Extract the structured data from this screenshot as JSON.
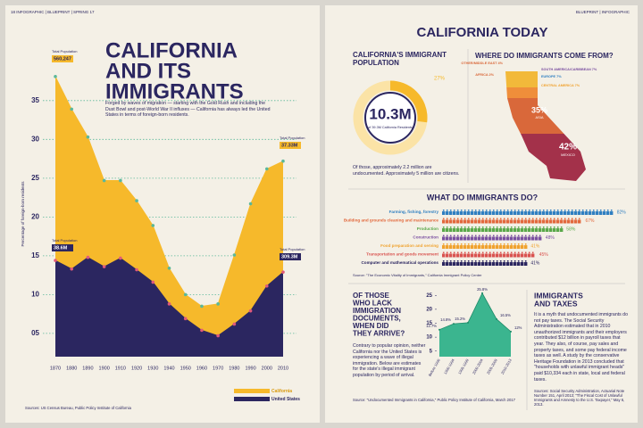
{
  "header_left": "18 INFOGRAPHIC | BLUEPRINT | SPRING 17",
  "header_right": "BLUEPRINT | INFOGRAPHIC",
  "title_lines": [
    "CALIFORNIA",
    "AND ITS",
    "IMMIGRANTS"
  ],
  "intro": "Forged by waves of migration — starting with the Gold Rush and including the Dust Bowl and post-World War II influxes — California has always led the United States in terms of foreign-born residents.",
  "right_title": "CALIFORNIA TODAY",
  "donut_note": "Of those, approximately 2.2 million are undocumented. Approximately 5 million are citizens.",
  "map": {
    "title": "WHERE DO IMMIGRANTS COME FROM?",
    "labels": [
      "OTHER/MIDDLE EAST 4%",
      "AFRICA 2%",
      "SOUTH AMERICA/CARIBBEAN 7%",
      "EUROPE 7%",
      "CENTRAL AMERICA 7%"
    ],
    "asia_pct": "35%",
    "asia": "ASIA",
    "mexico_pct": "42%",
    "mexico": "MEXICO"
  },
  "undoc_title_lines": [
    "OF THOSE",
    "WHO LACK",
    "IMMIGRATION",
    "DOCUMENTS,",
    "WHEN DID",
    "THEY ARRIVE?"
  ],
  "undoc_text": "Contrary to popular opinion, neither California nor the United States is experiencing a wave of illegal immigration. Below are estimates for the state's illegal immigrant population by period of arrival.",
  "undoc_source": "Source: \"Undocumented Immigrants in California,\" Public Policy Institute of California, March 2017",
  "taxes_title_lines": [
    "IMMIGRANTS",
    "AND TAXES"
  ],
  "taxes_text": "It is a myth that undocumented immigrants do not pay taxes. The Social Security Administration estimated that in 2010 unauthorized immigrants and their employers contributed $12 billion in payroll taxes that year. They also, of course, pay sales and property taxes, and some pay federal income taxes as well. A study by the conservative Heritage Foundation in 2013 concluded that \"households with unlawful immigrant heads\" paid $10,334 each in state, local and federal taxes.",
  "taxes_source": "Sources: Social Security Administration, Actuarial Note Number 151, April 2013; \"The Fiscal Cost of Unlawful Immigrants and Amnesty to the U.S. Taxpayer,\" May 6, 2013.",
  "chart_data": [
    {
      "type": "area",
      "y_label": "Percentage of foreign-born residents",
      "x": [
        1870,
        1880,
        1890,
        1900,
        1910,
        1920,
        1930,
        1940,
        1950,
        1960,
        1970,
        1980,
        1990,
        2000,
        2010
      ],
      "xlim": [
        1870,
        2010
      ],
      "ylim": [
        2,
        39
      ],
      "yticks": [
        {
          "value": 5,
          "label": "05"
        },
        10,
        15,
        20,
        25,
        30,
        35
      ],
      "grid": true,
      "series": [
        {
          "name": "California",
          "color": "#f6b92b",
          "marker_color": "#5bb89a",
          "values": [
            38.1,
            33.9,
            30.3,
            24.7,
            24.7,
            22.1,
            18.9,
            13.4,
            10.0,
            8.5,
            8.8,
            15.1,
            21.7,
            26.2,
            27.2
          ]
        },
        {
          "name": "United States",
          "color": "#2b2660",
          "marker_color": "#e05a7a",
          "values": [
            14.4,
            13.3,
            14.8,
            13.6,
            14.7,
            13.2,
            11.6,
            8.8,
            6.9,
            5.4,
            4.7,
            6.2,
            7.9,
            11.1,
            12.9
          ]
        }
      ],
      "annotations": [
        {
          "title": "Total Population",
          "label": "560,247"
        },
        {
          "title": "Total Population",
          "label": "38.6M"
        },
        {
          "title": "Total Population",
          "label": "37.33M"
        },
        {
          "title": "Total Population",
          "label": "309.3M"
        }
      ],
      "source": "Sources: US Census Bureau, Public Policy Institute of California"
    },
    {
      "type": "donut",
      "title_lines": [
        "CALIFORNIA'S IMMIGRANT",
        "POPULATION"
      ],
      "values": [
        27
      ],
      "value_labels": [
        "27%"
      ],
      "color": "#f6b92b",
      "track_color": "#fbe3a6",
      "center": "10.3M",
      "center_sub": "of 39.3M California Residents"
    },
    {
      "type": "pictogram",
      "title": "WHAT DO IMMIGRANTS DO?",
      "categories": [
        "Farming, fishing, forestry",
        "Building and grounds cleaning and maintenance",
        "Production",
        "Construction",
        "Food preparation and serving",
        "Transportation and goods movement",
        "Computer and mathematical operations"
      ],
      "values": [
        82,
        67,
        58,
        48,
        41,
        45,
        41
      ],
      "value_labels": [
        "82%",
        "67%",
        "58%",
        "48%",
        "41%",
        "45%",
        "41%"
      ],
      "colors": [
        "#2f7fc1",
        "#e2683c",
        "#5aa84a",
        "#7a4fa0",
        "#f0a22e",
        "#d9534f",
        "#2b2660"
      ],
      "source": "Source: \"The Economic Vitality of Immigrants,\" California Immigrant Policy Center"
    },
    {
      "type": "area",
      "categories": [
        "Before 1990",
        "1990-1994",
        "1995-1999",
        "2000-2004",
        "2005-2009",
        "2010-2013"
      ],
      "values": [
        12.7,
        14.8,
        15.2,
        25.8,
        16.5,
        12
      ],
      "value_labels": [
        "12.7%",
        "14.8%",
        "15.2%",
        "25.8%",
        "16.5%",
        "12%"
      ],
      "color": "#3bb58f",
      "ylim": [
        3,
        27
      ],
      "yticks": [
        5,
        10,
        15,
        20,
        25
      ]
    }
  ]
}
